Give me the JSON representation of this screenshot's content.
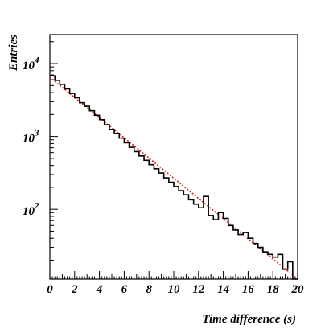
{
  "chart_data": {
    "type": "histogram",
    "xlabel": "Time difference (s)",
    "ylabel": "Entries",
    "xlim": [
      0,
      20
    ],
    "ylim": [
      11,
      25000
    ],
    "yscale": "log",
    "grid": false,
    "x_ticks": [
      {
        "value": 0,
        "label": "0"
      },
      {
        "value": 2,
        "label": "2"
      },
      {
        "value": 4,
        "label": "4"
      },
      {
        "value": 6,
        "label": "6"
      },
      {
        "value": 8,
        "label": "8"
      },
      {
        "value": 10,
        "label": "10"
      },
      {
        "value": 12,
        "label": "12"
      },
      {
        "value": 14,
        "label": "14"
      },
      {
        "value": 16,
        "label": "16"
      },
      {
        "value": 18,
        "label": "18"
      },
      {
        "value": 20,
        "label": "20"
      }
    ],
    "y_ticks": [
      {
        "value": 100,
        "base": "10",
        "exp": "2"
      },
      {
        "value": 1000,
        "base": "10",
        "exp": "3"
      },
      {
        "value": 10000,
        "base": "10",
        "exp": "4"
      }
    ],
    "bin_width": 0.4,
    "series": [
      {
        "kind": "histogram",
        "color": "#000000",
        "values": [
          6800,
          5900,
          5200,
          4500,
          3900,
          3400,
          2900,
          2600,
          2250,
          1950,
          1700,
          1450,
          1250,
          1100,
          950,
          820,
          710,
          620,
          540,
          470,
          410,
          360,
          315,
          270,
          235,
          205,
          180,
          158,
          135,
          118,
          105,
          150,
          82,
          72,
          90,
          75,
          60,
          52,
          45,
          48,
          40,
          34,
          30,
          26,
          24,
          22,
          24,
          15,
          19,
          11
        ]
      },
      {
        "kind": "fit",
        "style": "dotted",
        "color": "#e0201b",
        "x0": 0,
        "y0": 6500,
        "x1": 20,
        "y1": 11
      }
    ]
  }
}
